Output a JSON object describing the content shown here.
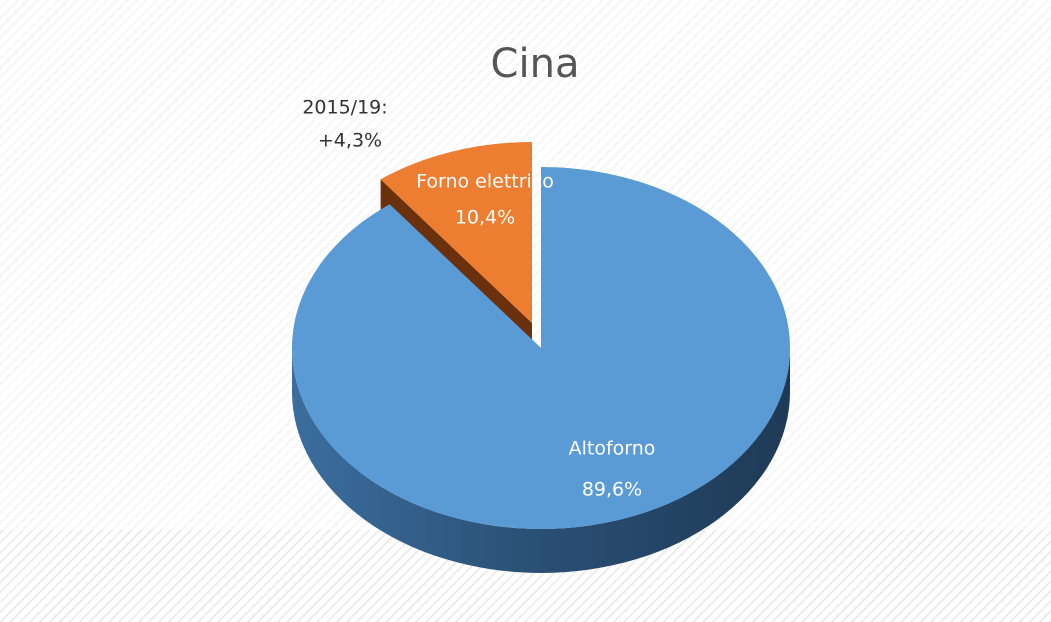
{
  "chart_data": {
    "type": "pie",
    "title": "Cina",
    "categories": [
      "Altoforno",
      "Forno elettrico"
    ],
    "values": [
      89.6,
      10.4
    ],
    "value_labels": [
      "89,6%",
      "10,4%"
    ],
    "colors": [
      "#5b9bd5",
      "#ed7d31"
    ],
    "annotation": [
      "2015/19:",
      "+4,3%"
    ]
  }
}
